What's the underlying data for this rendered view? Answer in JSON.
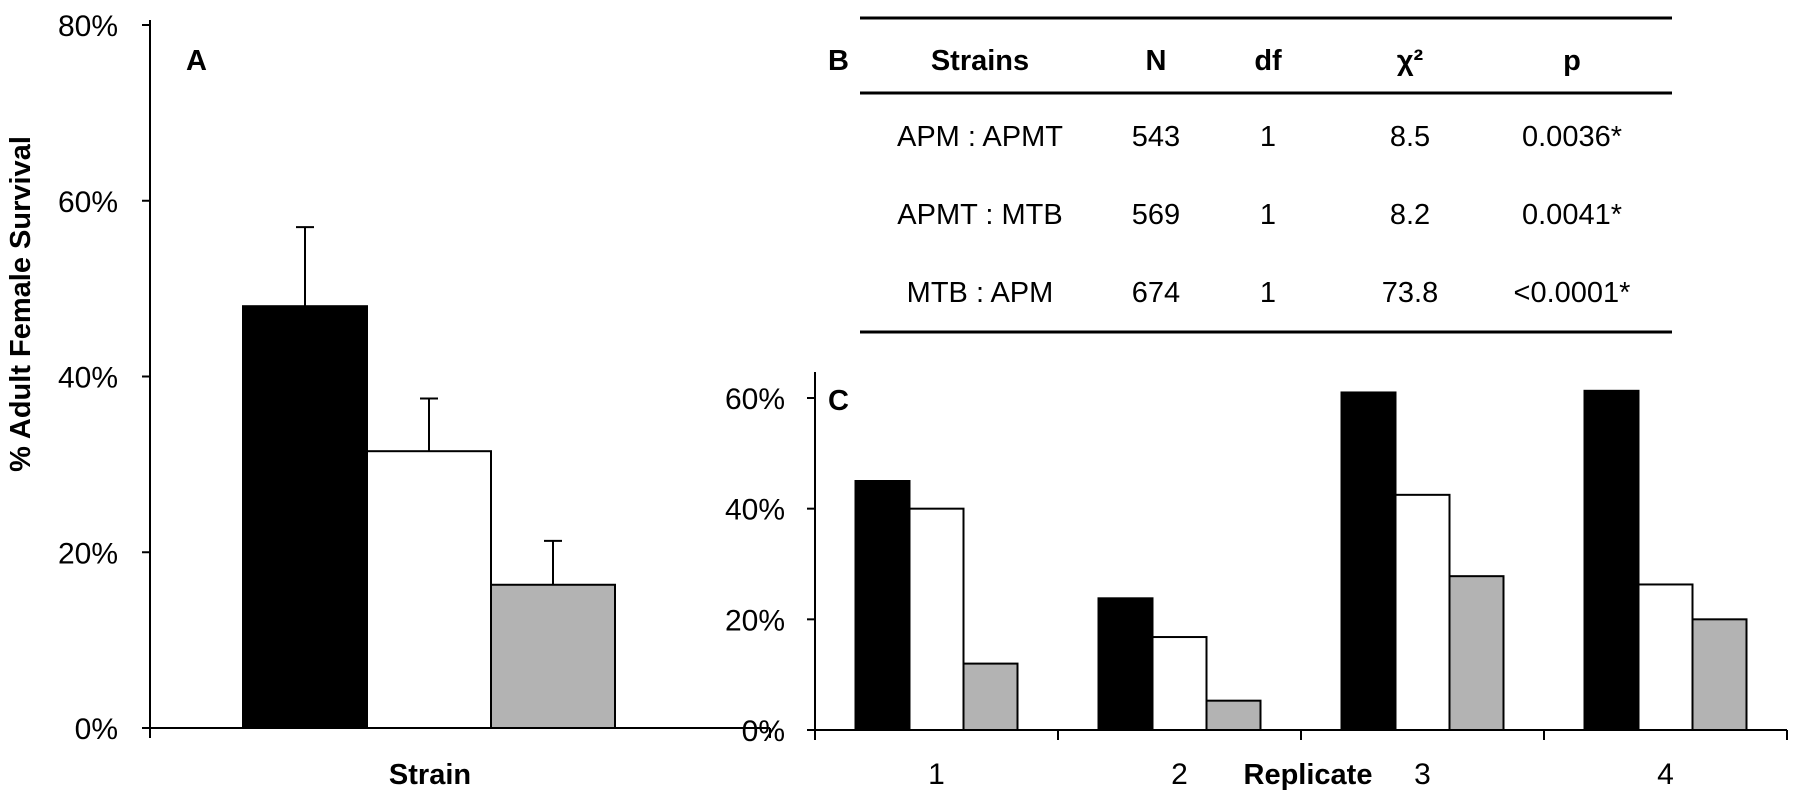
{
  "chart_data": [
    {
      "panel": "A",
      "type": "bar",
      "xlabel": "Strain",
      "ylabel": "% Adult Female Survival",
      "ylim": [
        0,
        80
      ],
      "yticks": [
        "0%",
        "20%",
        "40%",
        "60%",
        "80%"
      ],
      "bars": [
        {
          "value": 48,
          "error": 9,
          "color": "#000000"
        },
        {
          "value": 31.5,
          "error": 6,
          "color": "#ffffff"
        },
        {
          "value": 16.3,
          "error": 5,
          "color": "#b3b3b3"
        }
      ]
    },
    {
      "panel": "B",
      "type": "table",
      "columns": [
        "Strains",
        "N",
        "df",
        "χ²",
        "p"
      ],
      "rows": [
        [
          "APM : APMT",
          "543",
          "1",
          "8.5",
          "0.0036*"
        ],
        [
          "APMT : MTB",
          "569",
          "1",
          "8.2",
          "0.0041*"
        ],
        [
          "MTB : APM",
          "674",
          "1",
          "73.8",
          "<0.0001*"
        ]
      ]
    },
    {
      "panel": "C",
      "type": "bar",
      "xlabel": "Replicate",
      "ylabel": "",
      "ylim": [
        0,
        60
      ],
      "yticks": [
        "0%",
        "20%",
        "40%",
        "60%"
      ],
      "categories": [
        "1",
        "2",
        "3",
        "4"
      ],
      "series": [
        {
          "color": "#000000",
          "values": [
            45,
            23.8,
            61,
            61.3
          ]
        },
        {
          "color": "#ffffff",
          "values": [
            40,
            16.8,
            42.5,
            26.3
          ]
        },
        {
          "color": "#b3b3b3",
          "values": [
            12,
            5.3,
            27.8,
            20
          ]
        }
      ]
    }
  ]
}
